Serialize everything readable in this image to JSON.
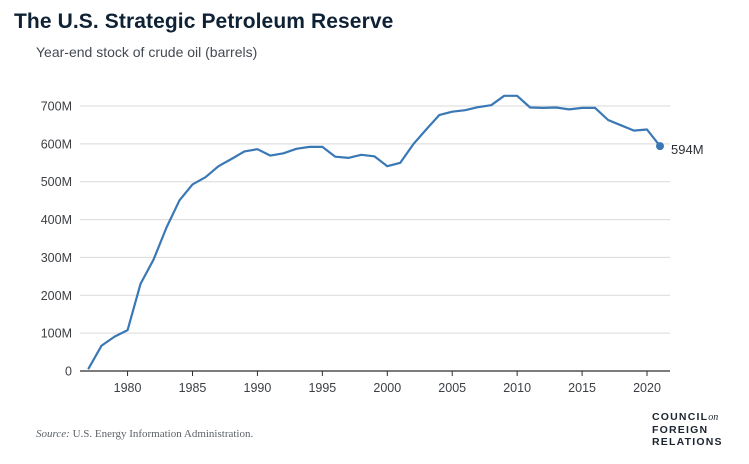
{
  "chart_data": {
    "type": "line",
    "title": "The U.S. Strategic Petroleum Reserve",
    "subtitle": "Year-end stock of crude oil (barrels)",
    "ylim": [
      0,
      700
    ],
    "yticks": [
      0,
      100,
      200,
      300,
      400,
      500,
      600,
      700
    ],
    "ytick_labels": [
      "0",
      "100M",
      "200M",
      "300M",
      "400M",
      "500M",
      "600M",
      "700M"
    ],
    "xlim": [
      1977,
      2021
    ],
    "xticks": [
      1980,
      1985,
      1990,
      1995,
      2000,
      2005,
      2010,
      2015,
      2020
    ],
    "xtick_labels": [
      "1980",
      "1985",
      "1990",
      "1995",
      "2000",
      "2005",
      "2010",
      "2015",
      "2020"
    ],
    "grid": true,
    "series": [
      {
        "color": "#3a78b5",
        "x": [
          1977,
          1978,
          1979,
          1980,
          1981,
          1982,
          1983,
          1984,
          1985,
          1986,
          1987,
          1988,
          1989,
          1990,
          1991,
          1992,
          1993,
          1994,
          1995,
          1996,
          1997,
          1998,
          1999,
          2000,
          2001,
          2002,
          2003,
          2004,
          2005,
          2006,
          2007,
          2008,
          2009,
          2010,
          2011,
          2012,
          2013,
          2014,
          2015,
          2016,
          2017,
          2018,
          2019,
          2020,
          2021
        ],
        "y": [
          7,
          67,
          91,
          108,
          230,
          294,
          379,
          451,
          493,
          512,
          541,
          560,
          580,
          586,
          569,
          575,
          587,
          592,
          592,
          566,
          563,
          571,
          567,
          541,
          550,
          599,
          638,
          676,
          685,
          689,
          697,
          702,
          727,
          727,
          696,
          695,
          696,
          691,
          695,
          695,
          663,
          649,
          635,
          638,
          594
        ]
      }
    ],
    "end_label": "594M",
    "source_label": "Source:",
    "source_text": "U.S. Energy Information Administration.",
    "logo": {
      "line1": "COUNCIL",
      "line1_suffix": "on",
      "line2": "FOREIGN",
      "line3": "RELATIONS"
    }
  }
}
